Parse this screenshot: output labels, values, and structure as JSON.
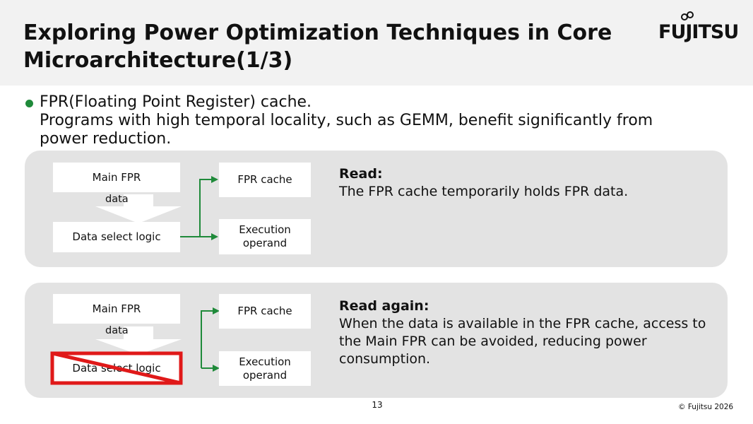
{
  "slide": {
    "title": "Exploring Power Optimization Techniques in Core Microarchitecture(1/3)",
    "logo": "FUJITSU",
    "page_number": "13",
    "copyright": "© Fujitsu 2026"
  },
  "bullet": {
    "lines": [
      "FPR(Floating Point Register) cache.",
      "Programs with high temporal locality, such as GEMM, benefit significantly from",
      "power reduction."
    ]
  },
  "panels": [
    {
      "main_fpr": "Main FPR",
      "data_label": "data",
      "data_select": "Data select logic",
      "fpr_cache": "FPR cache",
      "execution_operand_1": "Execution",
      "execution_operand_2": "operand",
      "heading": "Read:",
      "body": "The FPR cache temporarily holds FPR data."
    },
    {
      "main_fpr": "Main FPR",
      "data_label": "data",
      "data_select": "Data select logic",
      "fpr_cache": "FPR cache",
      "execution_operand_1": "Execution",
      "execution_operand_2": "operand",
      "heading": "Read again:",
      "body": "When the data is available in the FPR cache, access to the Main FPR can be avoided, reducing power consumption."
    }
  ],
  "colors": {
    "arrow_green": "#1f8a3a",
    "cross_red": "#e01919",
    "panel_gray": "#e3e3e3"
  }
}
